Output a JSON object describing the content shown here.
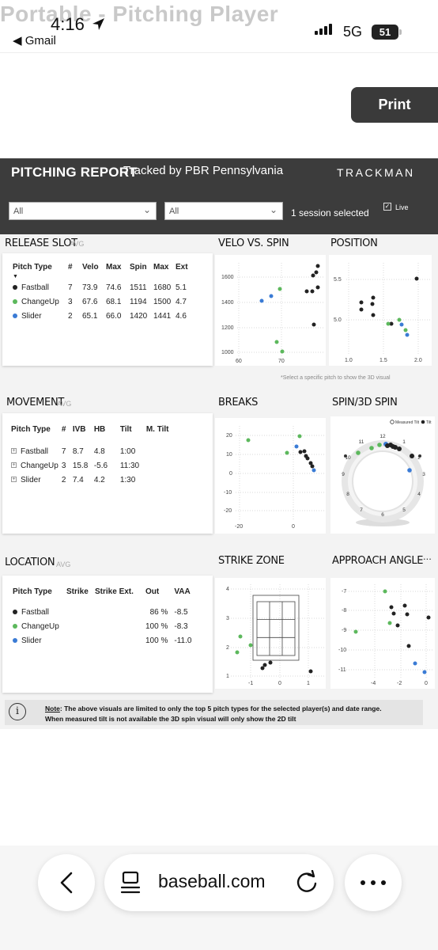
{
  "status_bar": {
    "ghost_title": "Portable - Pitching Player",
    "time": "4:16",
    "back_app": "◀ Gmail",
    "network": "5G",
    "battery": "51"
  },
  "toolbar": {
    "print_label": "Print"
  },
  "report": {
    "title": "PITCHING REPORT",
    "subtitle": "Tracked by PBR Pennsylvania",
    "brand": "TRACKMAN",
    "filters": [
      {
        "value": "All"
      },
      {
        "value": "All"
      }
    ],
    "session_text": "1 session selected",
    "live_label": "Live"
  },
  "colors": {
    "fastball": "#222222",
    "changeup": "#5cb85c",
    "slider": "#3a7bd5",
    "header": "#3c3c3c"
  },
  "release_slot": {
    "title": "RELEASE SLOT",
    "avg": "AVG",
    "headers": [
      "Pitch Type",
      "#",
      "Velo",
      "Max",
      "Spin",
      "Max",
      "Ext"
    ],
    "rows": [
      {
        "type": "Fastball",
        "color": "#222222",
        "cells": [
          "7",
          "73.9",
          "74.6",
          "1511",
          "1680",
          "5.1"
        ]
      },
      {
        "type": "ChangeUp",
        "color": "#5cb85c",
        "cells": [
          "3",
          "67.6",
          "68.1",
          "1194",
          "1500",
          "4.7"
        ]
      },
      {
        "type": "Slider",
        "color": "#3a7bd5",
        "cells": [
          "2",
          "65.1",
          "66.0",
          "1420",
          "1441",
          "4.6"
        ]
      }
    ]
  },
  "movement": {
    "title": "MOVEMENT",
    "avg": "AVG",
    "headers": [
      "Pitch Type",
      "#",
      "IVB",
      "HB",
      "Tilt",
      "M. Tilt"
    ],
    "rows": [
      {
        "type": "Fastball",
        "cells": [
          "7",
          "8.7",
          "4.8",
          "1:00",
          ""
        ]
      },
      {
        "type": "ChangeUp",
        "cells": [
          "3",
          "15.8",
          "-5.6",
          "11:30",
          ""
        ]
      },
      {
        "type": "Slider",
        "cells": [
          "2",
          "7.4",
          "4.2",
          "1:30",
          ""
        ]
      }
    ]
  },
  "location": {
    "title": "LOCATION",
    "avg": "AVG",
    "headers": [
      "Pitch Type",
      "Strike",
      "Strike Ext.",
      "Out",
      "VAA"
    ],
    "rows": [
      {
        "type": "Fastball",
        "color": "#222222",
        "cells": [
          "",
          "",
          "86 %",
          "-8.5"
        ]
      },
      {
        "type": "ChangeUp",
        "color": "#5cb85c",
        "cells": [
          "",
          "",
          "100 %",
          "-8.3"
        ]
      },
      {
        "type": "Slider",
        "color": "#3a7bd5",
        "cells": [
          "",
          "",
          "100 %",
          "-11.0"
        ]
      }
    ]
  },
  "panels": {
    "velo_spin": {
      "title": "VELO VS. SPIN",
      "yticks": [
        "1600",
        "1400",
        "1200",
        "1000"
      ],
      "xticks": [
        "60",
        "70"
      ]
    },
    "position": {
      "title": "POSITION",
      "yticks": [
        "5.5",
        "5.0"
      ],
      "xticks": [
        "1.0",
        "1.5",
        "2.0"
      ]
    },
    "breaks": {
      "title": "BREAKS",
      "yticks": [
        "20",
        "10",
        "0",
        "-10",
        "-20"
      ],
      "xticks": [
        "-20",
        "0"
      ]
    },
    "spin3d": {
      "title": "SPIN/3D SPIN",
      "legend_measured": "Measured Tilt",
      "legend_tilt": "Tilt",
      "clock": [
        "12",
        "1",
        "2",
        "3",
        "4",
        "5",
        "6",
        "7",
        "8",
        "9",
        "10",
        "11"
      ]
    },
    "strike_zone": {
      "title": "STRIKE ZONE",
      "yticks": [
        "4",
        "3",
        "2",
        "1"
      ],
      "xticks": [
        "-1",
        "0",
        "1"
      ]
    },
    "approach_angle": {
      "title": "APPROACH ANGLE",
      "menu": "...",
      "yticks": [
        "-7",
        "-8",
        "-9",
        "-10",
        "-11"
      ],
      "xticks": [
        "-4",
        "-2",
        "0"
      ]
    }
  },
  "caption_3d": "*Select a specific pitch to show the 3D visual",
  "note": {
    "label": "Note",
    "line1": ": The above visuals are limited to only the top 5 pitch types for the selected player(s) and date range.",
    "line2": "When measured tilt is not available the 3D spin visual will only show the 2D tilt"
  },
  "browser": {
    "url": "baseball.com"
  }
}
